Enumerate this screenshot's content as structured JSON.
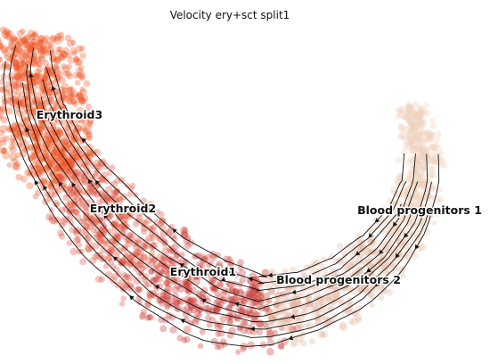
{
  "chart_data": {
    "type": "scatter",
    "title": "Velocity ery+sct split1",
    "xlabel": "",
    "ylabel": "",
    "grid": false,
    "legend": "on data",
    "colors": {
      "Erythroid3": "#f05323",
      "Erythroid2": "#dd4a36",
      "Erythroid1": "#c8322d",
      "Blood progenitors 2": "#e2b9a3",
      "Blood progenitors 1": "#efcfbb",
      "streamline": "#111111"
    },
    "clusters": [
      {
        "name": "Erythroid3",
        "label": "Erythroid3",
        "centroid": [
          0.12,
          0.7
        ]
      },
      {
        "name": "Erythroid2",
        "label": "Erythroid2",
        "centroid": [
          0.25,
          0.43
        ]
      },
      {
        "name": "Erythroid1",
        "label": "Erythroid1",
        "centroid": [
          0.41,
          0.24
        ]
      },
      {
        "name": "Blood progenitors 2",
        "label": "Blood progenitors 2",
        "centroid": [
          0.68,
          0.23
        ]
      },
      {
        "name": "Blood progenitors 1",
        "label": "Blood progenitors 1",
        "centroid": [
          0.87,
          0.45
        ]
      }
    ],
    "velocity_direction": "Blood progenitors 1 → Blood progenitors 2 → Erythroid1 → Erythroid2 → Erythroid3"
  }
}
